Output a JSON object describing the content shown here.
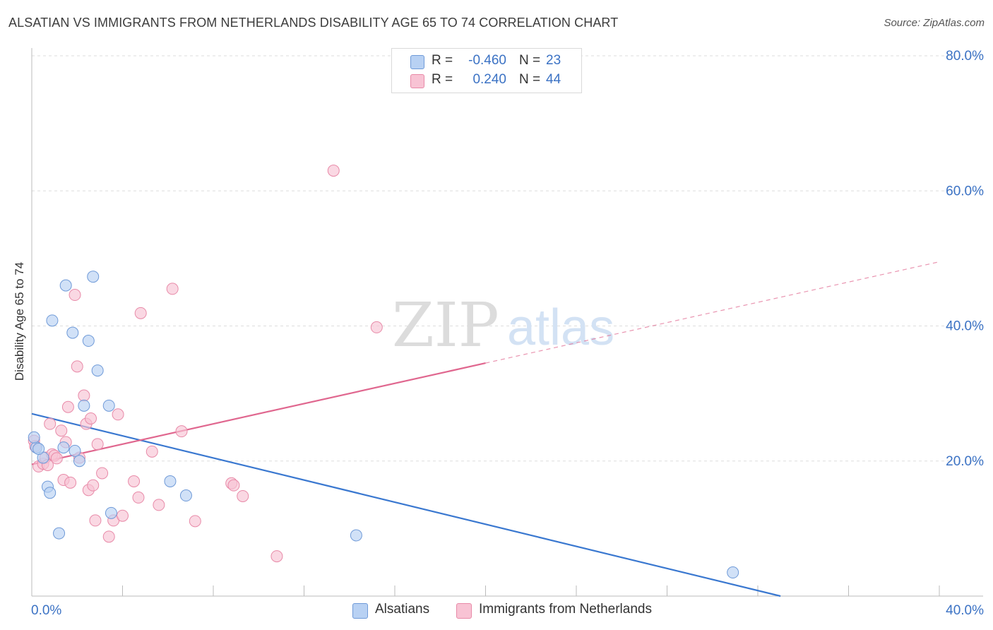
{
  "title": "ALSATIAN VS IMMIGRANTS FROM NETHERLANDS DISABILITY AGE 65 TO 74 CORRELATION CHART",
  "source": "Source: ZipAtlas.com",
  "legend_top": [
    {
      "swatch": "#b8d1f3",
      "swatch_border": "#6f9ad8",
      "r_label": "R =",
      "r_value": "-0.460",
      "n_label": "N =",
      "n_value": "23"
    },
    {
      "swatch": "#f8c3d4",
      "swatch_border": "#e88aa8",
      "r_label": "R =",
      "r_value": "0.240",
      "n_label": "N =",
      "n_value": "44"
    }
  ],
  "bottom_legend": [
    {
      "label": "Alsatians",
      "color": "#b8d1f3",
      "border": "#6f9ad8"
    },
    {
      "label": "Immigrants from Netherlands",
      "color": "#f8c3d4",
      "border": "#e88aa8"
    }
  ],
  "watermark": {
    "zip": "ZIP",
    "atlas": "atlas"
  },
  "chart_data": {
    "type": "scatter",
    "xlabel": "",
    "ylabel": "Disability Age 65 to 74",
    "xlim": [
      0,
      40
    ],
    "ylim": [
      0,
      80
    ],
    "x_tick_labels": [
      "0.0%",
      "40.0%"
    ],
    "y_tick_labels": [
      "20.0%",
      "40.0%",
      "60.0%",
      "80.0%"
    ],
    "y_ticks": [
      20,
      40,
      60,
      80
    ],
    "series": [
      {
        "name": "Alsatians",
        "color": "#6f9ad8",
        "fill": "#b8d1f3",
        "line_color": "#3a78d0",
        "trend": {
          "x0": 0,
          "y0": 27.0,
          "x1": 33.0,
          "y1": 0.0,
          "solid_to": 33.0
        },
        "points": [
          [
            0.2,
            22.0
          ],
          [
            0.5,
            20.5
          ],
          [
            0.7,
            16.2
          ],
          [
            0.8,
            15.3
          ],
          [
            0.9,
            40.8
          ],
          [
            1.2,
            9.3
          ],
          [
            1.4,
            22.0
          ],
          [
            1.5,
            46.0
          ],
          [
            1.8,
            39.0
          ],
          [
            1.9,
            21.5
          ],
          [
            2.1,
            20.0
          ],
          [
            2.3,
            28.2
          ],
          [
            2.5,
            37.8
          ],
          [
            2.7,
            47.3
          ],
          [
            2.9,
            33.4
          ],
          [
            3.4,
            28.2
          ],
          [
            3.5,
            12.3
          ],
          [
            6.1,
            17.0
          ],
          [
            6.8,
            14.9
          ],
          [
            14.3,
            9.0
          ],
          [
            30.9,
            3.5
          ],
          [
            0.1,
            23.5
          ],
          [
            0.3,
            21.8
          ]
        ]
      },
      {
        "name": "Immigrants from Netherlands",
        "color": "#e88aa8",
        "fill": "#f8c3d4",
        "line_color": "#e0678f",
        "trend": {
          "x0": 0,
          "y0": 19.5,
          "x1": 40.0,
          "y1": 49.5,
          "solid_to": 20.0
        },
        "points": [
          [
            0.1,
            23.0
          ],
          [
            0.3,
            19.2
          ],
          [
            0.5,
            19.6
          ],
          [
            0.6,
            20.5
          ],
          [
            0.7,
            19.4
          ],
          [
            0.8,
            25.5
          ],
          [
            0.9,
            21.0
          ],
          [
            1.0,
            20.8
          ],
          [
            1.1,
            20.4
          ],
          [
            1.3,
            24.5
          ],
          [
            1.4,
            17.2
          ],
          [
            1.5,
            22.8
          ],
          [
            1.6,
            28.0
          ],
          [
            1.7,
            16.8
          ],
          [
            1.9,
            44.6
          ],
          [
            2.0,
            34.0
          ],
          [
            2.1,
            20.5
          ],
          [
            2.3,
            29.7
          ],
          [
            2.4,
            25.5
          ],
          [
            2.5,
            15.7
          ],
          [
            2.6,
            26.3
          ],
          [
            2.7,
            16.4
          ],
          [
            2.8,
            11.2
          ],
          [
            2.9,
            22.5
          ],
          [
            3.1,
            18.2
          ],
          [
            3.4,
            8.8
          ],
          [
            3.6,
            11.2
          ],
          [
            3.8,
            26.9
          ],
          [
            4.0,
            11.9
          ],
          [
            4.5,
            17.0
          ],
          [
            4.7,
            14.6
          ],
          [
            4.8,
            41.9
          ],
          [
            5.3,
            21.4
          ],
          [
            5.6,
            13.5
          ],
          [
            6.2,
            45.5
          ],
          [
            6.6,
            24.4
          ],
          [
            7.2,
            11.1
          ],
          [
            8.8,
            16.7
          ],
          [
            8.9,
            16.4
          ],
          [
            9.3,
            14.8
          ],
          [
            10.8,
            5.9
          ],
          [
            13.3,
            63.0
          ],
          [
            15.2,
            39.8
          ],
          [
            0.15,
            22.2
          ]
        ]
      }
    ]
  }
}
